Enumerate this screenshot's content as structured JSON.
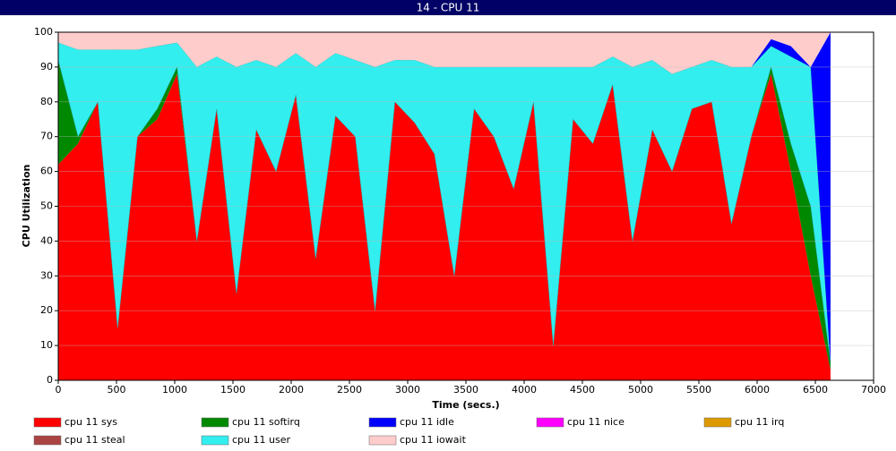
{
  "chart_data": {
    "type": "stacked-area",
    "title": "14 - CPU 11",
    "xlabel": "Time (secs.)",
    "ylabel": "CPU Utilization",
    "x": [
      0,
      170,
      340,
      510,
      680,
      850,
      1020,
      1190,
      1360,
      1530,
      1700,
      1870,
      2040,
      2210,
      2380,
      2550,
      2720,
      2890,
      3060,
      3230,
      3400,
      3570,
      3740,
      3910,
      4080,
      4250,
      4420,
      4590,
      4760,
      4930,
      5100,
      5270,
      5440,
      5610,
      5780,
      5950,
      6120,
      6290,
      6460,
      6630
    ],
    "series": [
      {
        "name": "cpu 11 sys",
        "color": "#ff0000",
        "values": [
          62,
          68,
          80,
          15,
          70,
          75,
          88,
          40,
          78,
          25,
          72,
          60,
          82,
          35,
          76,
          70,
          20,
          80,
          74,
          65,
          30,
          78,
          70,
          55,
          80,
          10,
          75,
          68,
          85,
          40,
          72,
          60,
          78,
          80,
          45,
          70,
          88,
          60,
          30,
          3
        ]
      },
      {
        "name": "cpu 11 softirq",
        "color": "#008800",
        "values": [
          30,
          2,
          0,
          0,
          0,
          3,
          2,
          0,
          0,
          0,
          0,
          0,
          0,
          0,
          0,
          0,
          0,
          0,
          0,
          0,
          0,
          0,
          0,
          0,
          0,
          0,
          0,
          0,
          0,
          0,
          0,
          0,
          0,
          0,
          0,
          0,
          2,
          8,
          20,
          2
        ]
      },
      {
        "name": "cpu 11 idle",
        "color": "#0000ff",
        "values": [
          0,
          0,
          0,
          0,
          0,
          0,
          0,
          0,
          0,
          0,
          0,
          0,
          0,
          0,
          0,
          0,
          0,
          0,
          0,
          0,
          0,
          0,
          0,
          0,
          0,
          0,
          0,
          0,
          0,
          0,
          0,
          0,
          0,
          0,
          0,
          0,
          2,
          3,
          0,
          95
        ]
      },
      {
        "name": "cpu 11 nice",
        "color": "#ff00ff",
        "values": [
          0,
          0,
          0,
          0,
          0,
          0,
          0,
          0,
          0,
          0,
          0,
          0,
          0,
          0,
          0,
          0,
          0,
          0,
          0,
          0,
          0,
          0,
          0,
          0,
          0,
          0,
          0,
          0,
          0,
          0,
          0,
          0,
          0,
          0,
          0,
          0,
          0,
          0,
          0,
          0
        ]
      },
      {
        "name": "cpu 11 irq",
        "color": "#dd9900",
        "values": [
          0,
          0,
          0,
          0,
          0,
          0,
          0,
          0,
          0,
          0,
          0,
          0,
          0,
          0,
          0,
          0,
          0,
          0,
          0,
          0,
          0,
          0,
          0,
          0,
          0,
          0,
          0,
          0,
          0,
          0,
          0,
          0,
          0,
          0,
          0,
          0,
          0,
          0,
          0,
          0
        ]
      },
      {
        "name": "cpu 11 steal",
        "color": "#aa4444",
        "values": [
          0,
          0,
          0,
          0,
          0,
          0,
          0,
          0,
          0,
          0,
          0,
          0,
          0,
          0,
          0,
          0,
          0,
          0,
          0,
          0,
          0,
          0,
          0,
          0,
          0,
          0,
          0,
          0,
          0,
          0,
          0,
          0,
          0,
          0,
          0,
          0,
          0,
          0,
          0,
          0
        ]
      },
      {
        "name": "cpu 11 user",
        "color": "#33eeee",
        "values": [
          5,
          25,
          15,
          80,
          25,
          18,
          7,
          50,
          15,
          65,
          20,
          30,
          12,
          55,
          18,
          22,
          70,
          12,
          18,
          25,
          60,
          12,
          20,
          35,
          10,
          80,
          15,
          22,
          8,
          50,
          20,
          28,
          12,
          12,
          45,
          20,
          6,
          25,
          40,
          0
        ]
      },
      {
        "name": "cpu 11 iowait",
        "color": "#ffcccc",
        "values": [
          3,
          5,
          5,
          5,
          5,
          4,
          3,
          10,
          7,
          10,
          8,
          10,
          6,
          10,
          6,
          8,
          10,
          8,
          8,
          10,
          10,
          10,
          10,
          10,
          10,
          10,
          10,
          10,
          7,
          10,
          8,
          12,
          10,
          8,
          10,
          10,
          2,
          4,
          10,
          0
        ]
      }
    ],
    "xlim": [
      0,
      7000
    ],
    "xticks": [
      0,
      500,
      1000,
      1500,
      2000,
      2500,
      3000,
      3500,
      4000,
      4500,
      5000,
      5500,
      6000,
      6500,
      7000
    ],
    "ylim": [
      0,
      100
    ],
    "yticks": [
      0,
      10,
      20,
      30,
      40,
      50,
      60,
      70,
      80,
      90,
      100
    ],
    "grid": true
  }
}
